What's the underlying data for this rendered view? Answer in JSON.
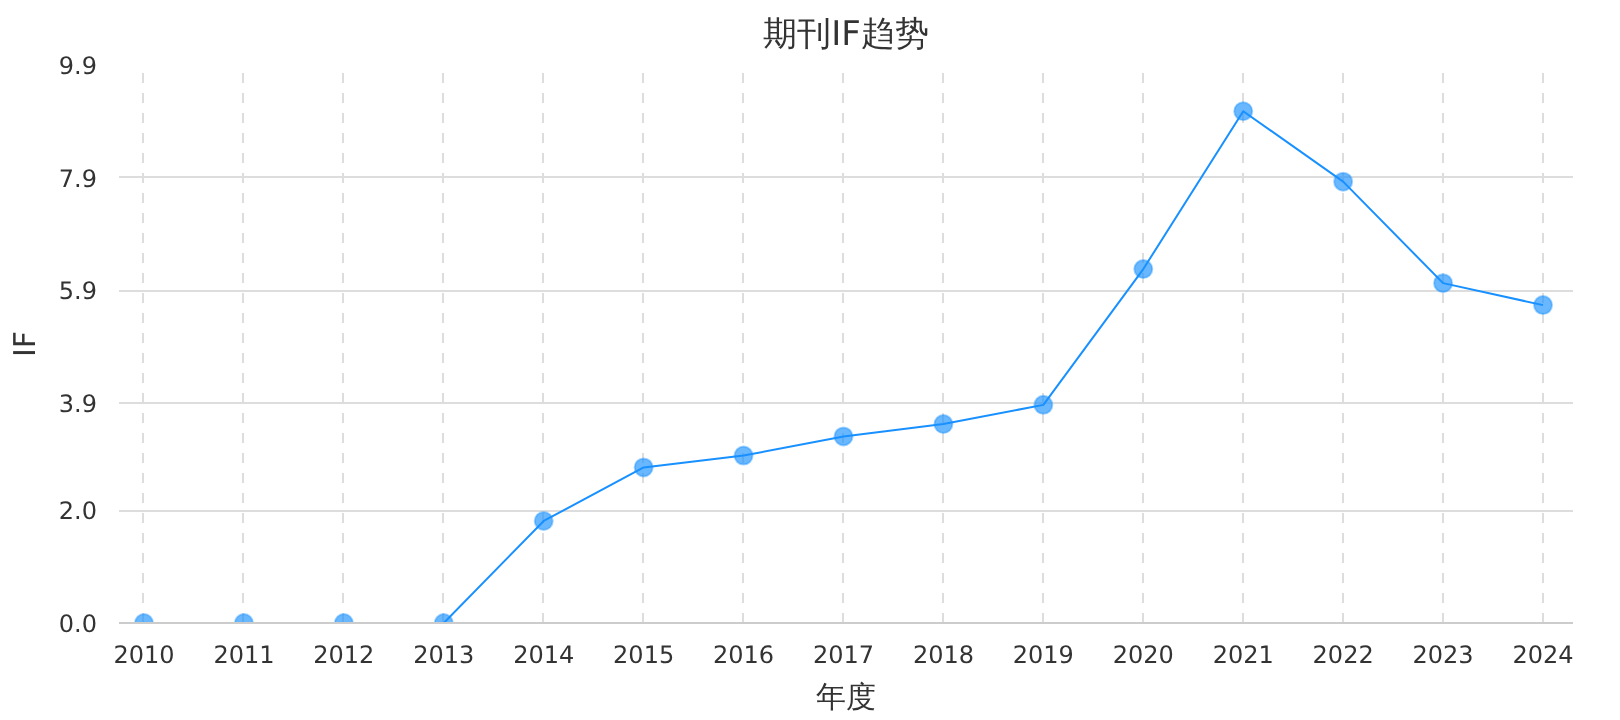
{
  "chart_data": {
    "type": "line",
    "title": "期刊IF趋势",
    "xlabel": "年度",
    "ylabel": "IF",
    "categories": [
      "2010",
      "2011",
      "2012",
      "2013",
      "2014",
      "2015",
      "2016",
      "2017",
      "2018",
      "2019",
      "2020",
      "2021",
      "2022",
      "2023",
      "2024"
    ],
    "series": [
      {
        "color": "#1890ff",
        "values": [
          0,
          0,
          0,
          0,
          1.81,
          2.76,
          2.97,
          3.31,
          3.53,
          3.87,
          6.28,
          9.08,
          7.83,
          6.03,
          5.64
        ]
      }
    ],
    "ylim": [
      0,
      9.9
    ],
    "yticks": [
      {
        "value": 0,
        "label": "0.0"
      },
      {
        "value": 2.0,
        "label": "2.0"
      },
      {
        "value": 3.9,
        "label": "3.9"
      },
      {
        "value": 5.9,
        "label": "5.9"
      },
      {
        "value": 7.9,
        "label": "7.9"
      },
      {
        "value": 9.9,
        "label": "9.9"
      }
    ],
    "grid": true,
    "marker": "circle",
    "line_style": "solid"
  }
}
